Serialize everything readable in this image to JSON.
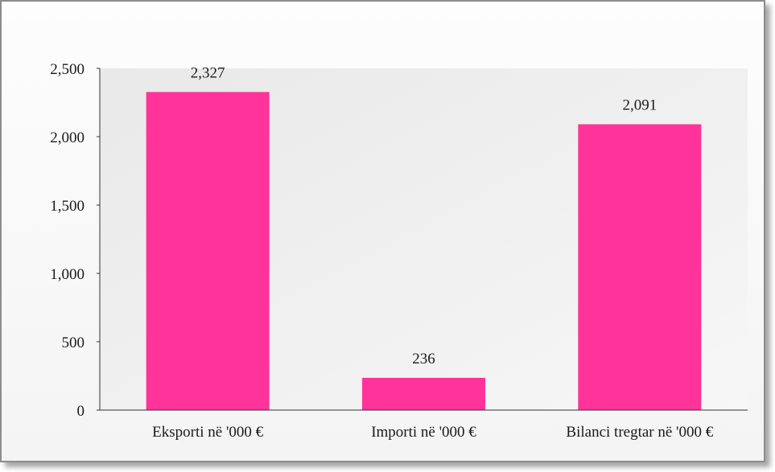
{
  "chart_data": {
    "type": "bar",
    "categories": [
      "Eksporti në '000 €",
      "Importi në '000 €",
      "Bilanci tregtar në '000 €"
    ],
    "values": [
      2327,
      236,
      2091
    ],
    "data_labels": [
      "2,327",
      "236",
      "2,091"
    ],
    "title": "",
    "xlabel": "",
    "ylabel": "",
    "ylim": [
      0,
      2500
    ],
    "yticks": [
      0,
      500,
      1000,
      1500,
      2000,
      2500
    ],
    "ytick_labels": [
      "0",
      "500",
      "1,000",
      "1,500",
      "2,000",
      "2,500"
    ],
    "grid": false,
    "legend": "none",
    "colors": {
      "bar": "#ff3399",
      "plot_background": "#ececec",
      "axis": "#333333"
    }
  }
}
